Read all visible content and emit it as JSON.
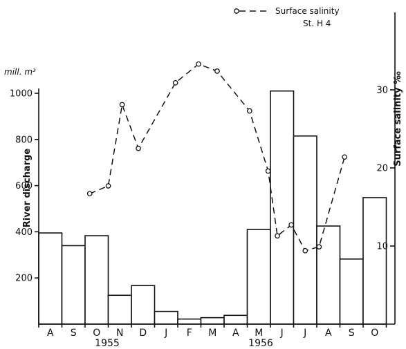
{
  "chart_data": {
    "type": "bar",
    "categories": [
      "A",
      "S",
      "O",
      "N",
      "D",
      "J",
      "F",
      "M",
      "A",
      "M",
      "J",
      "J",
      "A",
      "S",
      "O"
    ],
    "year_labels": [
      "1955",
      "1956"
    ],
    "left_axis": {
      "title": "River discharge",
      "unit": "mill. m³",
      "ticks": [
        200,
        400,
        600,
        800,
        1000
      ],
      "ylim": [
        0,
        1100
      ]
    },
    "right_axis": {
      "title": "Surface salinity ‰",
      "ticks": [
        10,
        20,
        30
      ],
      "ylim": [
        0,
        33.3
      ]
    },
    "series": [
      {
        "name": "River discharge",
        "type": "bar",
        "values": [
          395,
          340,
          383,
          125,
          167,
          55,
          22,
          28,
          38,
          410,
          1010,
          815,
          425,
          282,
          548
        ]
      },
      {
        "name": "Surface salinity St. H 4",
        "type": "line",
        "points": [
          {
            "x": 2.2,
            "y": 16.7
          },
          {
            "x": 3.0,
            "y": 17.7
          },
          {
            "x": 3.6,
            "y": 28.1
          },
          {
            "x": 4.3,
            "y": 22.5
          },
          {
            "x": 5.9,
            "y": 30.9
          },
          {
            "x": 6.9,
            "y": 33.3
          },
          {
            "x": 7.7,
            "y": 32.4
          },
          {
            "x": 9.1,
            "y": 27.3
          },
          {
            "x": 9.9,
            "y": 19.6
          },
          {
            "x": 10.3,
            "y": 11.3
          },
          {
            "x": 10.9,
            "y": 12.7
          },
          {
            "x": 11.5,
            "y": 9.4
          },
          {
            "x": 12.1,
            "y": 9.9
          },
          {
            "x": 13.2,
            "y": 21.4
          }
        ]
      }
    ],
    "legend": {
      "label": "Surface salinity",
      "sublabel": "St. H 4",
      "position": "top-right"
    },
    "grid": false
  }
}
